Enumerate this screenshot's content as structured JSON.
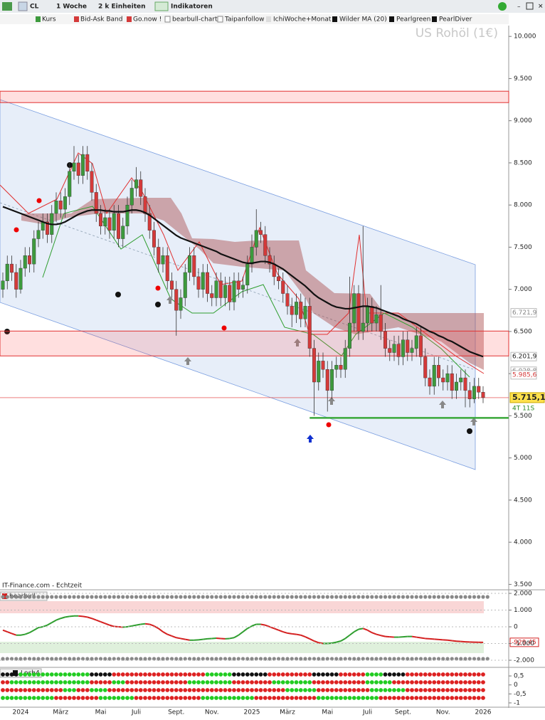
{
  "toolbar": {
    "symbol": "CL",
    "period": "1 Woche",
    "units": "2 k Einheiten",
    "indicators": "Indikatoren"
  },
  "legend": [
    "Kurs",
    "Bid-Ask Band",
    "Go.now !",
    "bearbull-chart",
    "Taipanfollow",
    "IchiWoche+Monat",
    "Pearlgreen",
    "PearlDiver"
  ],
  "source": "IT-Finance.com - Echtzeit",
  "chart_data": [
    {
      "type": "candlestick",
      "title": "US Rohöl (1€)",
      "categories": [
        null,
        null,
        null,
        null,
        "2024",
        null,
        null,
        null,
        null,
        null,
        null,
        null,
        null,
        "März",
        null,
        null,
        null,
        null,
        null,
        null,
        null,
        null,
        "Mai",
        null,
        null,
        null,
        null,
        null,
        null,
        null,
        "Juli",
        null,
        null,
        null,
        null,
        null,
        null,
        null,
        null,
        "Sept.",
        null,
        null,
        null,
        null,
        null,
        null,
        null,
        "Nov.",
        null,
        null,
        null,
        null,
        null,
        null,
        null,
        null,
        "2025",
        null,
        null,
        null,
        null,
        null,
        null,
        null,
        "März",
        null,
        null,
        null,
        null,
        null,
        null,
        null,
        null,
        "Mai",
        null,
        null,
        null,
        null,
        null,
        null,
        null,
        null,
        "Juli",
        null,
        null,
        null,
        null,
        null,
        null,
        null,
        "Sept.",
        null,
        null,
        null,
        null,
        null,
        null,
        null,
        null,
        "Nov.",
        null,
        null,
        null,
        null,
        null,
        null,
        null,
        null,
        "2026"
      ],
      "open": [
        7000,
        7100,
        7300,
        7200,
        7000,
        7250,
        7400,
        7300,
        7600,
        7700,
        7800,
        7650,
        7900,
        8050,
        7950,
        8100,
        8400,
        8500,
        8350,
        8600,
        8400,
        8150,
        7900,
        7750,
        7850,
        7700,
        7900,
        7600,
        7750,
        8000,
        8200,
        8300,
        8100,
        7900,
        7700,
        7500,
        7300,
        7400,
        7100,
        7000,
        6750,
        6900,
        7200,
        7400,
        7150,
        7000,
        7200,
        6950,
        6900,
        7100,
        6900,
        7050,
        6850,
        7100,
        7000,
        7050,
        7300,
        7500,
        7700,
        7650,
        7400,
        7300,
        7150,
        7100,
        6950,
        6800,
        6700,
        6850,
        6650,
        6800,
        6300,
        5900,
        6150,
        6050,
        5800,
        6050,
        6100,
        6050,
        6300,
        6600,
        6950,
        6500,
        6600,
        6800,
        6600,
        6700,
        6500,
        6300,
        6250,
        6350,
        6200,
        6400,
        6250,
        6300,
        6450,
        6200,
        5950,
        5850,
        6100,
        5950,
        5900,
        6000,
        5800,
        5900,
        5950,
        5800,
        5700,
        5850,
        5780
      ],
      "high": [
        7200,
        7400,
        7400,
        7300,
        7350,
        7500,
        7500,
        7700,
        7800,
        7900,
        7900,
        8000,
        8150,
        8150,
        8200,
        8500,
        8700,
        8600,
        8700,
        8700,
        8500,
        8250,
        8000,
        7950,
        7950,
        8000,
        8000,
        7850,
        8100,
        8300,
        8450,
        8400,
        8200,
        8000,
        7800,
        7600,
        7500,
        7500,
        7200,
        7100,
        7000,
        7300,
        7500,
        7500,
        7250,
        7300,
        7300,
        7050,
        7200,
        7200,
        7150,
        7150,
        7200,
        7200,
        7150,
        7400,
        7650,
        7950,
        7800,
        7750,
        7500,
        7400,
        7250,
        7200,
        7050,
        6900,
        6950,
        6950,
        6900,
        6900,
        6400,
        6250,
        6250,
        6150,
        6150,
        6200,
        6200,
        6400,
        7150,
        7050,
        7050,
        7750,
        6900,
        6900,
        6800,
        7050,
        6600,
        6400,
        6450,
        6450,
        6500,
        6500,
        6400,
        6550,
        6550,
        6300,
        6050,
        6200,
        6200,
        6050,
        6100,
        6100,
        6000,
        6050,
        6050,
        5900,
        5950,
        5950,
        5850
      ],
      "low": [
        6900,
        7000,
        7100,
        6900,
        6950,
        7150,
        7200,
        7200,
        7500,
        7600,
        7550,
        7550,
        7800,
        7850,
        7850,
        8000,
        8300,
        8250,
        8250,
        8300,
        8050,
        7800,
        7650,
        7650,
        7600,
        7600,
        7500,
        7500,
        7650,
        7900,
        8100,
        8000,
        7800,
        7600,
        7400,
        7200,
        7200,
        7000,
        6900,
        6450,
        6650,
        6800,
        7100,
        7050,
        6900,
        6900,
        6850,
        6800,
        6800,
        6800,
        6800,
        6750,
        6750,
        6900,
        6900,
        6950,
        7200,
        7400,
        7550,
        7300,
        7200,
        7050,
        7000,
        6850,
        6700,
        6550,
        6600,
        6550,
        6550,
        6200,
        5500,
        5800,
        5950,
        5550,
        5700,
        5950,
        5950,
        5950,
        6200,
        6500,
        6400,
        6400,
        6500,
        6500,
        6500,
        6400,
        6200,
        6150,
        6150,
        6100,
        6100,
        6150,
        6150,
        6200,
        6100,
        5850,
        5750,
        5750,
        5850,
        5800,
        5800,
        5700,
        5700,
        5800,
        5600,
        5600,
        5650,
        5700,
        5650
      ],
      "close": [
        7100,
        7300,
        7200,
        7000,
        7250,
        7400,
        7300,
        7600,
        7700,
        7800,
        7650,
        7900,
        8050,
        7950,
        8100,
        8400,
        8500,
        8350,
        8600,
        8400,
        8150,
        7900,
        7750,
        7850,
        7700,
        7900,
        7600,
        7750,
        8000,
        8200,
        8300,
        8100,
        7900,
        7700,
        7500,
        7300,
        7400,
        7100,
        7000,
        6750,
        6900,
        7200,
        7400,
        7150,
        7000,
        7200,
        6950,
        6900,
        7100,
        6900,
        7050,
        6850,
        7100,
        7000,
        7050,
        7300,
        7500,
        7700,
        7650,
        7400,
        7300,
        7150,
        7100,
        6950,
        6800,
        6700,
        6850,
        6650,
        6800,
        6300,
        5900,
        6150,
        6050,
        5800,
        6050,
        6100,
        6050,
        6300,
        6600,
        6950,
        6500,
        6600,
        6800,
        6600,
        6700,
        6500,
        6300,
        6250,
        6350,
        6200,
        6400,
        6250,
        6300,
        6450,
        6200,
        5950,
        5850,
        6100,
        5950,
        5900,
        6000,
        5800,
        5900,
        5950,
        5800,
        5700,
        5850,
        5780,
        5715.1
      ],
      "last_label": "5.715,1",
      "countdown": "4T 11S",
      "up_color": "#3d9a3d",
      "down_color": "#d43a3a",
      "series": [
        {
          "name": "Wilder MA (20)",
          "color": "#111111",
          "values": [
            7980,
            7960,
            7940,
            7920,
            7900,
            7880,
            7860,
            7840,
            7820,
            7800,
            7780,
            7770,
            7770,
            7780,
            7800,
            7830,
            7860,
            7890,
            7910,
            7930,
            7940,
            7940,
            7940,
            7930,
            7930,
            7920,
            7920,
            7920,
            7930,
            7940,
            7940,
            7930,
            7910,
            7880,
            7840,
            7800,
            7760,
            7720,
            7680,
            7640,
            7610,
            7590,
            7570,
            7550,
            7530,
            7510,
            7490,
            7470,
            7450,
            7420,
            7400,
            7380,
            7360,
            7340,
            7320,
            7310,
            7310,
            7320,
            7330,
            7330,
            7320,
            7300,
            7270,
            7240,
            7200,
            7160,
            7120,
            7080,
            7040,
            6990,
            6940,
            6900,
            6870,
            6840,
            6810,
            6790,
            6780,
            6770,
            6770,
            6780,
            6790,
            6800,
            6800,
            6790,
            6780,
            6760,
            6740,
            6720,
            6700,
            6680,
            6650,
            6630,
            6610,
            6590,
            6560,
            6530,
            6500,
            6480,
            6450,
            6430,
            6400,
            6380,
            6350,
            6320,
            6290,
            6260,
            6240,
            6220,
            6201.9
          ]
        }
      ],
      "zones": [
        {
          "from": 9215,
          "to": 9350
        },
        {
          "from": 6210,
          "to": 6505
        }
      ],
      "support": {
        "value": 5475,
        "start": 69,
        "color": "#3aa83a"
      },
      "markers": [
        {
          "value": 6721.9,
          "label": "6.721,9",
          "color": "#888888"
        },
        {
          "value": 6201.9,
          "label": "6.201,9",
          "color": "#222222"
        },
        {
          "value": 6028.8,
          "label": "6.028,8",
          "color": "#888888"
        },
        {
          "value": 5985.6,
          "label": "5.985,6",
          "color": "#d43a3a"
        }
      ],
      "ylim": [
        3440,
        10280
      ],
      "yticks": [
        {
          "value": 3500,
          "label": "3.500"
        },
        {
          "value": 4000,
          "label": "4.000"
        },
        {
          "value": 4500,
          "label": "4.500"
        },
        {
          "value": 5000,
          "label": "5.000"
        },
        {
          "value": 5500,
          "label": "5.500"
        },
        {
          "value": 6000,
          "label": "6.000"
        },
        {
          "value": 6500,
          "label": "6.500"
        },
        {
          "value": 7000,
          "label": "7.000"
        },
        {
          "value": 7500,
          "label": "7.500"
        },
        {
          "value": 8000,
          "label": "8.000"
        },
        {
          "value": 8500,
          "label": "8.500"
        },
        {
          "value": 9000,
          "label": "9.000"
        },
        {
          "value": 9500,
          "label": "9.500"
        },
        {
          "value": 10000,
          "label": "10.000"
        }
      ]
    },
    {
      "type": "line",
      "title": "bearbull",
      "series": [
        {
          "name": "bearbull",
          "up_color": "#2f9e2f",
          "down_color": "#d42020",
          "values": [
            -200,
            -300,
            -400,
            -500,
            -500,
            -450,
            -350,
            -200,
            -50,
            0,
            100,
            250,
            400,
            500,
            580,
            620,
            650,
            650,
            620,
            580,
            500,
            400,
            300,
            200,
            100,
            20,
            0,
            -20,
            0,
            50,
            100,
            150,
            180,
            150,
            50,
            -100,
            -300,
            -450,
            -550,
            -650,
            -700,
            -750,
            -800,
            -800,
            -780,
            -750,
            -720,
            -700,
            -680,
            -700,
            -720,
            -700,
            -650,
            -500,
            -300,
            -100,
            50,
            150,
            150,
            100,
            0,
            -100,
            -200,
            -300,
            -380,
            -420,
            -450,
            -500,
            -600,
            -720,
            -850,
            -950,
            -1000,
            -1000,
            -980,
            -920,
            -850,
            -700,
            -500,
            -300,
            -150,
            -100,
            -200,
            -350,
            -450,
            -520,
            -580,
            -600,
            -620,
            -620,
            -600,
            -580,
            -580,
            -620,
            -660,
            -700,
            -720,
            -740,
            -760,
            -780,
            -800,
            -830,
            -860,
            -880,
            -900,
            -910,
            -920,
            -925,
            -929.45
          ],
          "last_label": "-929,45"
        }
      ],
      "ylim": [
        -2213,
        2170
      ],
      "yticks": [
        {
          "value": 2000,
          "label": "2.000"
        },
        {
          "value": 1000,
          "label": "1.000"
        },
        0,
        {
          "value": -1000,
          "label": "-1.000"
        },
        {
          "value": -2000,
          "label": "-2.000"
        }
      ]
    },
    {
      "type": "dots",
      "title": "Loch4",
      "rows": [
        [
          {
            "color": "#111111",
            "count": 4
          },
          {
            "color": "#22cc22",
            "count": 16
          },
          {
            "color": "#111111",
            "count": 5
          },
          {
            "color": "#dd2222",
            "count": 21
          },
          {
            "color": "#22cc22",
            "count": 6
          },
          {
            "color": "#111111",
            "count": 8
          },
          {
            "color": "#dd2222",
            "count": 10
          },
          {
            "color": "#111111",
            "count": 6
          },
          {
            "color": "#dd2222",
            "count": 6
          },
          {
            "color": "#22cc22",
            "count": 4
          },
          {
            "color": "#111111",
            "count": 5
          },
          {
            "color": "#dd2222",
            "count": 18
          }
        ],
        [
          {
            "color": "#dd2222",
            "count": 2
          },
          {
            "color": "#22cc22",
            "count": 18
          },
          {
            "color": "#dd2222",
            "count": 5
          },
          {
            "color": "#22cc22",
            "count": 3
          },
          {
            "color": "#dd2222",
            "count": 14
          },
          {
            "color": "#22cc22",
            "count": 10
          },
          {
            "color": "#dd2222",
            "count": 9
          },
          {
            "color": "#22cc22",
            "count": 9
          },
          {
            "color": "#dd2222",
            "count": 12
          },
          {
            "color": "#22cc22",
            "count": 6
          },
          {
            "color": "#dd2222",
            "count": 21
          }
        ],
        [
          {
            "color": "#dd2222",
            "count": 14
          },
          {
            "color": "#22cc22",
            "count": 3
          },
          {
            "color": "#dd2222",
            "count": 3
          },
          {
            "color": "#22cc22",
            "count": 4
          },
          {
            "color": "#dd2222",
            "count": 40
          },
          {
            "color": "#22cc22",
            "count": 7
          },
          {
            "color": "#dd2222",
            "count": 12
          },
          {
            "color": "#22cc22",
            "count": 8
          },
          {
            "color": "#dd2222",
            "count": 18
          }
        ],
        [
          {
            "color": "#22cc22",
            "count": 12
          },
          {
            "color": "#dd2222",
            "count": 10
          },
          {
            "color": "#22cc22",
            "count": 8
          },
          {
            "color": "#dd2222",
            "count": 15
          },
          {
            "color": "#22cc22",
            "count": 12
          },
          {
            "color": "#dd2222",
            "count": 14
          },
          {
            "color": "#22cc22",
            "count": 14
          },
          {
            "color": "#dd2222",
            "count": 24
          }
        ]
      ],
      "ylim": [
        -1.2,
        0.78
      ],
      "yticks": [
        {
          "value": 0.5,
          "label": "0,5"
        },
        0,
        {
          "value": -0.5,
          "label": "-0,5"
        },
        -1
      ]
    }
  ]
}
